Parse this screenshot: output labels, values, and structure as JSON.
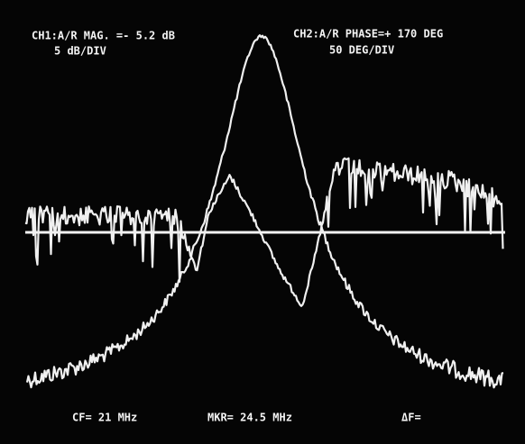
{
  "screen": {
    "ch1_label": "CH1:A/R MAG. =- 5.2 dB",
    "ch1_scale": "5 dB/DIV",
    "ch2_label": "CH2:A/R PHASE=+ 170 DEG",
    "ch2_scale": "50 DEG/DIV",
    "center_freq": "CF= 21 MHz",
    "marker_freq": "MKR= 24.5 MHz",
    "delta_freq": "ΔF="
  }
}
